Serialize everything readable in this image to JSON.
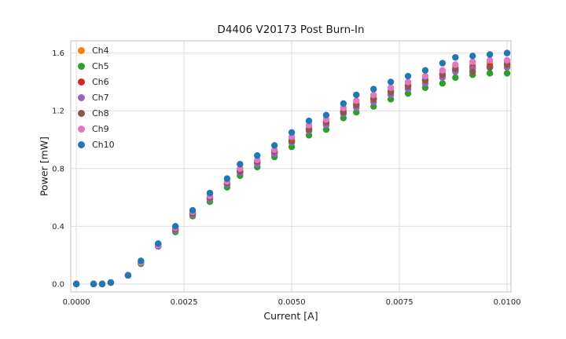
{
  "chart_data": {
    "type": "scatter",
    "title": "D4406 V20173 Post Burn-In",
    "xlabel": "Current [A]",
    "ylabel": "Power [mW]",
    "xlim": [
      -0.00013,
      0.01009
    ],
    "ylim": [
      -0.055,
      1.685
    ],
    "grid": true,
    "grid_color": "#dcdcdc",
    "spine_color": "#cccccc",
    "background_color": "#ffffff",
    "legend_position": "upper left",
    "marker": "circle",
    "marker_size": 4.2,
    "xticks": [
      {
        "v": 0.0,
        "label": "0.0000"
      },
      {
        "v": 0.0025,
        "label": "0.0025"
      },
      {
        "v": 0.005,
        "label": "0.0050"
      },
      {
        "v": 0.0075,
        "label": "0.0075"
      },
      {
        "v": 0.01,
        "label": "0.0100"
      }
    ],
    "yticks": [
      {
        "v": 0.0,
        "label": "0.0"
      },
      {
        "v": 0.4,
        "label": "0.4"
      },
      {
        "v": 0.8,
        "label": "0.8"
      },
      {
        "v": 1.2,
        "label": "1.2"
      },
      {
        "v": 1.6,
        "label": "1.6"
      }
    ],
    "x": [
      0.0,
      0.0004,
      0.0006,
      0.0008,
      0.0012,
      0.0015,
      0.0019,
      0.0023,
      0.0027,
      0.0031,
      0.0035,
      0.0038,
      0.0042,
      0.0046,
      0.005,
      0.0054,
      0.0058,
      0.0062,
      0.0065,
      0.0069,
      0.0073,
      0.0077,
      0.0081,
      0.0085,
      0.0088,
      0.0092,
      0.0096,
      0.01
    ],
    "series": [
      {
        "name": "Ch4",
        "color": "#ff7f0e",
        "values": [
          0.0,
          0.0,
          0.0,
          0.01,
          0.06,
          0.15,
          0.27,
          0.38,
          0.49,
          0.6,
          0.7,
          0.79,
          0.85,
          0.92,
          1.0,
          1.08,
          1.12,
          1.2,
          1.25,
          1.29,
          1.34,
          1.38,
          1.42,
          1.46,
          1.5,
          1.52,
          1.53,
          1.53
        ]
      },
      {
        "name": "Ch5",
        "color": "#2ca02c",
        "values": [
          0.0,
          0.0,
          0.0,
          0.01,
          0.06,
          0.14,
          0.26,
          0.36,
          0.47,
          0.57,
          0.67,
          0.75,
          0.81,
          0.88,
          0.95,
          1.03,
          1.07,
          1.15,
          1.19,
          1.23,
          1.28,
          1.32,
          1.36,
          1.39,
          1.43,
          1.45,
          1.46,
          1.46
        ]
      },
      {
        "name": "Ch6",
        "color": "#d62728",
        "values": [
          0.0,
          0.0,
          0.0,
          0.01,
          0.06,
          0.15,
          0.27,
          0.38,
          0.49,
          0.59,
          0.69,
          0.78,
          0.84,
          0.91,
          0.99,
          1.07,
          1.11,
          1.19,
          1.24,
          1.28,
          1.33,
          1.37,
          1.41,
          1.45,
          1.48,
          1.5,
          1.51,
          1.52
        ]
      },
      {
        "name": "Ch7",
        "color": "#9467bd",
        "values": [
          0.0,
          0.0,
          0.0,
          0.01,
          0.06,
          0.15,
          0.26,
          0.37,
          0.48,
          0.59,
          0.69,
          0.77,
          0.83,
          0.9,
          0.98,
          1.06,
          1.1,
          1.18,
          1.22,
          1.26,
          1.31,
          1.35,
          1.39,
          1.43,
          1.47,
          1.49,
          1.5,
          1.5
        ]
      },
      {
        "name": "Ch8",
        "color": "#8c564b",
        "values": [
          0.0,
          0.0,
          0.0,
          0.01,
          0.06,
          0.15,
          0.27,
          0.38,
          0.49,
          0.6,
          0.7,
          0.78,
          0.85,
          0.92,
          0.99,
          1.07,
          1.12,
          1.19,
          1.24,
          1.28,
          1.33,
          1.37,
          1.41,
          1.45,
          1.49,
          1.47,
          1.5,
          1.52
        ]
      },
      {
        "name": "Ch9",
        "color": "#e377c2",
        "values": [
          0.0,
          0.0,
          0.0,
          0.01,
          0.06,
          0.15,
          0.27,
          0.39,
          0.5,
          0.61,
          0.71,
          0.8,
          0.86,
          0.93,
          1.02,
          1.1,
          1.14,
          1.22,
          1.27,
          1.31,
          1.36,
          1.4,
          1.44,
          1.48,
          1.52,
          1.54,
          1.55,
          1.55
        ]
      },
      {
        "name": "Ch10",
        "color": "#1f77b4",
        "values": [
          0.0,
          0.0,
          0.0,
          0.01,
          0.06,
          0.16,
          0.28,
          0.4,
          0.51,
          0.63,
          0.73,
          0.83,
          0.89,
          0.96,
          1.05,
          1.13,
          1.17,
          1.25,
          1.31,
          1.35,
          1.4,
          1.44,
          1.48,
          1.53,
          1.57,
          1.58,
          1.59,
          1.6
        ]
      }
    ]
  }
}
